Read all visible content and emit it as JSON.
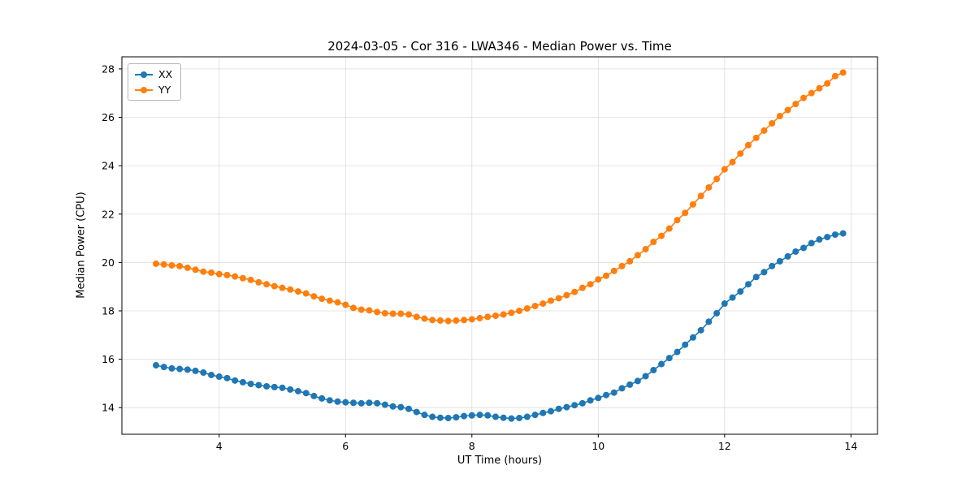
{
  "figure": {
    "title": "2024-03-05 - Cor 316 - LWA346 - Median Power vs. Time",
    "xlabel": "UT Time (hours)",
    "ylabel": "Median Power (CPU)"
  },
  "legend": {
    "items": [
      {
        "label": "XX",
        "color": "#1f77b4"
      },
      {
        "label": "YY",
        "color": "#ff7f0e"
      }
    ],
    "position": "upper left"
  },
  "chart_data": {
    "type": "line",
    "title": "2024-03-05 - Cor 316 - LWA346 - Median Power vs. Time",
    "xlabel": "UT Time (hours)",
    "ylabel": "Median Power (CPU)",
    "grid": true,
    "legend_position": "upper left",
    "marker": "circle",
    "xlim": [
      2.46,
      14.42
    ],
    "ylim": [
      12.9,
      28.5
    ],
    "xticks": [
      4,
      6,
      8,
      10,
      12,
      14
    ],
    "yticks": [
      14,
      16,
      18,
      20,
      22,
      24,
      26,
      28
    ],
    "x": [
      3.0,
      3.125,
      3.25,
      3.375,
      3.5,
      3.625,
      3.75,
      3.875,
      4.0,
      4.125,
      4.25,
      4.375,
      4.5,
      4.625,
      4.75,
      4.875,
      5.0,
      5.125,
      5.25,
      5.375,
      5.5,
      5.625,
      5.75,
      5.875,
      6.0,
      6.125,
      6.25,
      6.375,
      6.5,
      6.625,
      6.75,
      6.875,
      7.0,
      7.125,
      7.25,
      7.375,
      7.5,
      7.625,
      7.75,
      7.875,
      8.0,
      8.125,
      8.25,
      8.375,
      8.5,
      8.625,
      8.75,
      8.875,
      9.0,
      9.125,
      9.25,
      9.375,
      9.5,
      9.625,
      9.75,
      9.875,
      10.0,
      10.125,
      10.25,
      10.375,
      10.5,
      10.625,
      10.75,
      10.875,
      11.0,
      11.125,
      11.25,
      11.375,
      11.5,
      11.625,
      11.75,
      11.875,
      12.0,
      12.125,
      12.25,
      12.375,
      12.5,
      12.625,
      12.75,
      12.875,
      13.0,
      13.125,
      13.25,
      13.375,
      13.5,
      13.625,
      13.75,
      13.875
    ],
    "series": [
      {
        "name": "XX",
        "color": "#1f77b4",
        "values": [
          15.75,
          15.68,
          15.62,
          15.6,
          15.57,
          15.52,
          15.45,
          15.35,
          15.28,
          15.22,
          15.12,
          15.05,
          14.98,
          14.93,
          14.88,
          14.85,
          14.82,
          14.75,
          14.68,
          14.6,
          14.48,
          14.38,
          14.3,
          14.25,
          14.22,
          14.2,
          14.18,
          14.2,
          14.18,
          14.12,
          14.05,
          14.02,
          13.95,
          13.82,
          13.7,
          13.62,
          13.58,
          13.57,
          13.6,
          13.65,
          13.68,
          13.7,
          13.68,
          13.62,
          13.58,
          13.55,
          13.57,
          13.62,
          13.7,
          13.78,
          13.85,
          13.95,
          14.02,
          14.1,
          14.18,
          14.3,
          14.4,
          14.52,
          14.62,
          14.8,
          14.95,
          15.1,
          15.3,
          15.55,
          15.8,
          16.05,
          16.3,
          16.6,
          16.9,
          17.2,
          17.55,
          17.9,
          18.3,
          18.55,
          18.8,
          19.1,
          19.4,
          19.6,
          19.85,
          20.05,
          20.25,
          20.45,
          20.6,
          20.8,
          20.95,
          21.05,
          21.15,
          21.2
        ]
      },
      {
        "name": "YY",
        "color": "#ff7f0e",
        "values": [
          19.95,
          19.92,
          19.88,
          19.85,
          19.78,
          19.7,
          19.62,
          19.58,
          19.52,
          19.48,
          19.42,
          19.35,
          19.28,
          19.18,
          19.1,
          19.02,
          18.95,
          18.88,
          18.8,
          18.72,
          18.6,
          18.5,
          18.42,
          18.35,
          18.25,
          18.12,
          18.05,
          18.02,
          17.95,
          17.9,
          17.88,
          17.88,
          17.85,
          17.75,
          17.68,
          17.62,
          17.6,
          17.58,
          17.6,
          17.62,
          17.65,
          17.7,
          17.75,
          17.8,
          17.85,
          17.92,
          18.0,
          18.1,
          18.2,
          18.3,
          18.42,
          18.52,
          18.65,
          18.78,
          18.95,
          19.1,
          19.3,
          19.45,
          19.65,
          19.85,
          20.05,
          20.3,
          20.55,
          20.85,
          21.1,
          21.4,
          21.75,
          22.05,
          22.4,
          22.75,
          23.1,
          23.45,
          23.85,
          24.15,
          24.5,
          24.85,
          25.15,
          25.45,
          25.75,
          26.05,
          26.3,
          26.55,
          26.8,
          27.0,
          27.2,
          27.4,
          27.7,
          27.85
        ]
      }
    ]
  }
}
